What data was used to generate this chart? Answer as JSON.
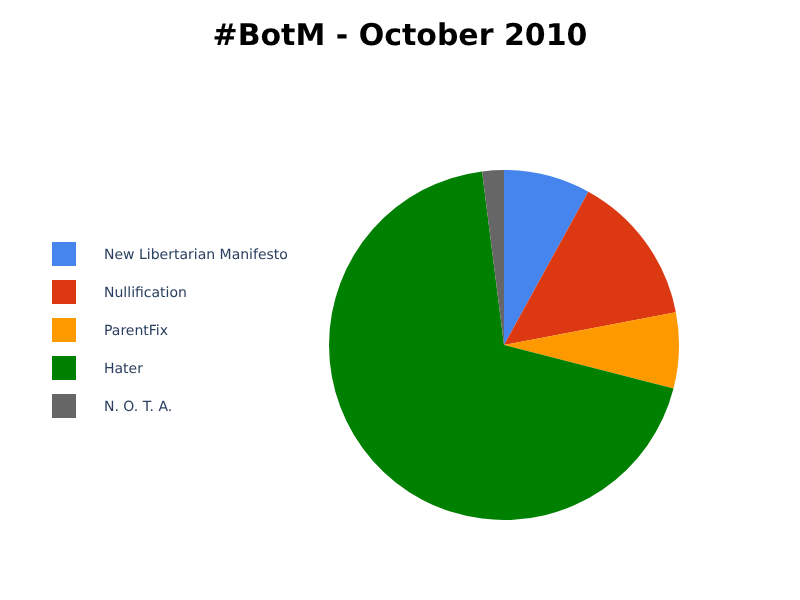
{
  "chart_data": {
    "type": "pie",
    "title": "#BotM - October 2010",
    "categories": [
      "New Libertarian Manifesto",
      "Nullification",
      "ParentFix",
      "Hater",
      "N. O. T. A."
    ],
    "values": [
      8,
      14,
      7,
      69,
      2
    ],
    "colors": [
      "#4684ee",
      "#dc3912",
      "#ff9900",
      "#008000",
      "#666666"
    ],
    "legend": "left"
  }
}
